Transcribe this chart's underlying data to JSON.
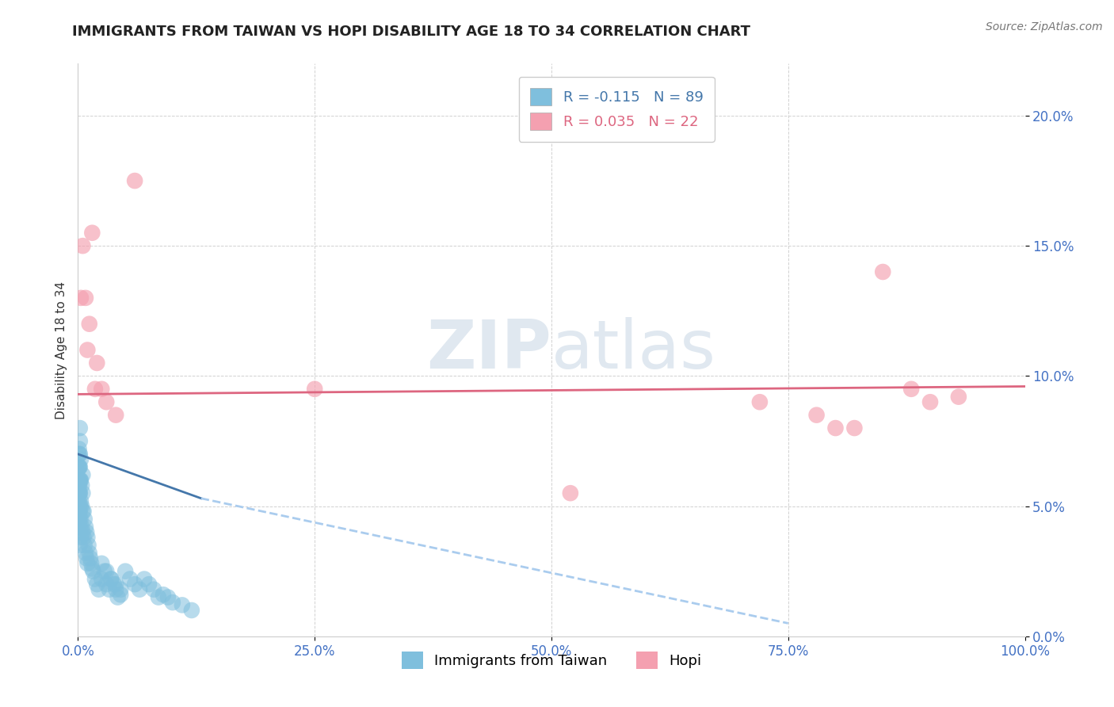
{
  "title": "IMMIGRANTS FROM TAIWAN VS HOPI DISABILITY AGE 18 TO 34 CORRELATION CHART",
  "source_text": "Source: ZipAtlas.com",
  "ylabel": "Disability Age 18 to 34",
  "xlim": [
    0,
    1.0
  ],
  "ylim": [
    0,
    0.22
  ],
  "xticks": [
    0,
    0.25,
    0.5,
    0.75,
    1.0
  ],
  "xticklabels": [
    "0.0%",
    "25.0%",
    "50.0%",
    "75.0%",
    "100.0%"
  ],
  "yticks": [
    0.0,
    0.05,
    0.1,
    0.15,
    0.2
  ],
  "yticklabels": [
    "0.0%",
    "5.0%",
    "10.0%",
    "15.0%",
    "20.0%"
  ],
  "taiwan_R": -0.115,
  "taiwan_N": 89,
  "hopi_R": 0.035,
  "hopi_N": 22,
  "taiwan_color": "#7fbfdd",
  "hopi_color": "#f4a0b0",
  "taiwan_line_color": "#4477aa",
  "hopi_line_color": "#dd6680",
  "taiwan_line_dashed_color": "#aaccee",
  "watermark_color": "#e0e8f0",
  "background_color": "#ffffff",
  "taiwan_x": [
    0.0005,
    0.0005,
    0.0005,
    0.0008,
    0.0008,
    0.001,
    0.001,
    0.001,
    0.001,
    0.001,
    0.0012,
    0.0012,
    0.0013,
    0.0015,
    0.0015,
    0.0015,
    0.0015,
    0.0015,
    0.0018,
    0.0018,
    0.002,
    0.002,
    0.002,
    0.002,
    0.002,
    0.002,
    0.002,
    0.002,
    0.002,
    0.0025,
    0.0025,
    0.003,
    0.003,
    0.003,
    0.003,
    0.003,
    0.004,
    0.004,
    0.004,
    0.005,
    0.005,
    0.005,
    0.005,
    0.006,
    0.006,
    0.007,
    0.007,
    0.008,
    0.008,
    0.009,
    0.009,
    0.01,
    0.01,
    0.011,
    0.012,
    0.013,
    0.014,
    0.015,
    0.016,
    0.018,
    0.02,
    0.022,
    0.025,
    0.028,
    0.03,
    0.033,
    0.035,
    0.038,
    0.04,
    0.042,
    0.045,
    0.05,
    0.055,
    0.06,
    0.065,
    0.07,
    0.075,
    0.08,
    0.085,
    0.09,
    0.095,
    0.1,
    0.11,
    0.12,
    0.025,
    0.03,
    0.035,
    0.04,
    0.045
  ],
  "taiwan_y": [
    0.05,
    0.06,
    0.07,
    0.055,
    0.065,
    0.045,
    0.052,
    0.058,
    0.065,
    0.072,
    0.048,
    0.06,
    0.055,
    0.04,
    0.05,
    0.058,
    0.065,
    0.07,
    0.045,
    0.055,
    0.035,
    0.042,
    0.048,
    0.055,
    0.06,
    0.065,
    0.07,
    0.075,
    0.08,
    0.05,
    0.06,
    0.038,
    0.045,
    0.052,
    0.06,
    0.068,
    0.042,
    0.05,
    0.058,
    0.04,
    0.048,
    0.055,
    0.062,
    0.038,
    0.048,
    0.035,
    0.045,
    0.032,
    0.042,
    0.03,
    0.04,
    0.028,
    0.038,
    0.035,
    0.032,
    0.03,
    0.028,
    0.026,
    0.025,
    0.022,
    0.02,
    0.018,
    0.022,
    0.025,
    0.02,
    0.018,
    0.022,
    0.02,
    0.018,
    0.015,
    0.016,
    0.025,
    0.022,
    0.02,
    0.018,
    0.022,
    0.02,
    0.018,
    0.015,
    0.016,
    0.015,
    0.013,
    0.012,
    0.01,
    0.028,
    0.025,
    0.022,
    0.02,
    0.018
  ],
  "hopi_x": [
    0.003,
    0.005,
    0.008,
    0.01,
    0.012,
    0.015,
    0.018,
    0.02,
    0.025,
    0.03,
    0.04,
    0.06,
    0.25,
    0.52,
    0.72,
    0.78,
    0.8,
    0.82,
    0.85,
    0.88,
    0.9,
    0.93
  ],
  "hopi_y": [
    0.13,
    0.15,
    0.13,
    0.11,
    0.12,
    0.155,
    0.095,
    0.105,
    0.095,
    0.09,
    0.085,
    0.175,
    0.095,
    0.055,
    0.09,
    0.085,
    0.08,
    0.08,
    0.14,
    0.095,
    0.09,
    0.092
  ],
  "hopi_line_x_start": 0.0,
  "hopi_line_x_end": 1.0,
  "hopi_line_y_start": 0.093,
  "hopi_line_y_end": 0.096,
  "taiwan_line_solid_x_start": 0.0,
  "taiwan_line_solid_x_end": 0.13,
  "taiwan_line_solid_y_start": 0.07,
  "taiwan_line_solid_y_end": 0.053,
  "taiwan_line_dash_x_start": 0.13,
  "taiwan_line_dash_x_end": 0.75,
  "taiwan_line_dash_y_start": 0.053,
  "taiwan_line_dash_y_end": 0.005
}
